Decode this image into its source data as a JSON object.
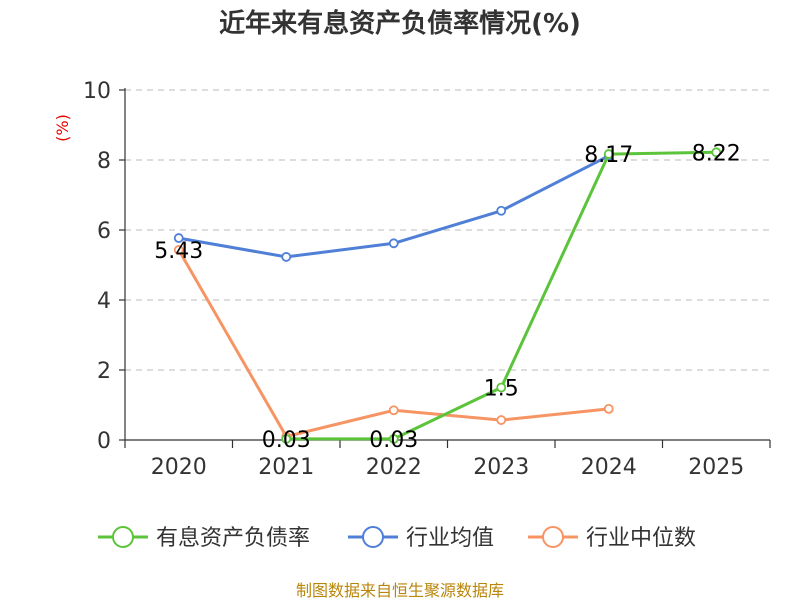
{
  "chart_data": {
    "type": "line",
    "title": "近年来有息资产负债率情况(%)",
    "ylabel": "(%)",
    "xlabel": "",
    "categories": [
      "2020",
      "2021",
      "2022",
      "2023",
      "2024",
      "2025"
    ],
    "ylim": [
      0,
      10
    ],
    "yticks": [
      "0",
      "2",
      "4",
      "6",
      "8",
      "10"
    ],
    "grid": true,
    "legend_position": "bottom",
    "series": [
      {
        "name": "有息资产负债率",
        "color": "#5cc43a",
        "values": [
          null,
          0.03,
          0.03,
          1.5,
          8.17,
          8.22
        ],
        "labels": [
          "",
          "0.03",
          "0.03",
          "1.5",
          "8.17",
          "8.22"
        ]
      },
      {
        "name": "行业均值",
        "color": "#4f7fd6",
        "values": [
          5.77,
          5.23,
          5.62,
          6.55,
          8.12,
          null
        ],
        "labels": [
          "",
          "",
          "",
          "",
          "",
          ""
        ]
      },
      {
        "name": "行业中位数",
        "color": "#f79463",
        "values": [
          5.43,
          0.1,
          0.85,
          0.57,
          0.89,
          null
        ],
        "labels": [
          "5.43",
          "",
          "",
          "",
          "",
          ""
        ]
      }
    ]
  },
  "footer": "制图数据来自恒生聚源数据库"
}
